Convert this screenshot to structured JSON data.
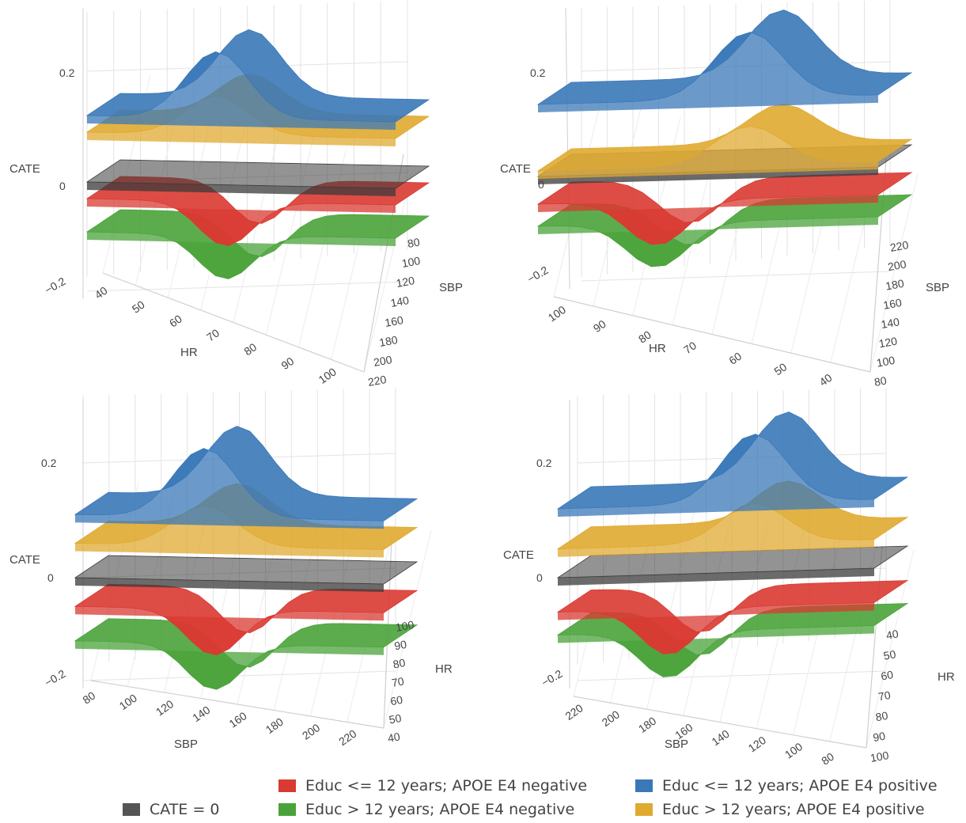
{
  "colors": {
    "zero": "#3a3a3a",
    "educLowNeg": "#d93a32",
    "educHighNeg": "#4aa33a",
    "educLowPos": "#3a78b8",
    "educHighPos": "#e0aa30"
  },
  "chart_data": [
    {
      "type": "surface3d",
      "zlabel": "CATE",
      "xlabel": "HR",
      "ylabel": "SBP",
      "z_ticks": [
        "0.2",
        "0",
        "−0.2"
      ],
      "x_ticks": [
        "40",
        "50",
        "60",
        "70",
        "80",
        "90",
        "100"
      ],
      "y_ticks": [
        "80",
        "100",
        "120",
        "140",
        "160",
        "180",
        "200",
        "220"
      ],
      "series_levels": {
        "zero": 0,
        "educLowNeg": -0.03,
        "educHighNeg": -0.09,
        "educLowPos": 0.12,
        "educHighPos": 0.09
      }
    },
    {
      "type": "surface3d",
      "zlabel": "CATE",
      "xlabel": "HR",
      "ylabel": "SBP",
      "z_ticks": [
        "0.2",
        "0",
        "−0.2"
      ],
      "x_ticks": [
        "100",
        "90",
        "80",
        "70",
        "60",
        "50",
        "40"
      ],
      "y_ticks": [
        "220",
        "200",
        "180",
        "160",
        "140",
        "120",
        "100",
        "80"
      ],
      "series_levels": {
        "zero": 0.01,
        "educLowNeg": -0.04,
        "educHighNeg": -0.08,
        "educLowPos": 0.14,
        "educHighPos": 0.02
      }
    },
    {
      "type": "surface3d",
      "zlabel": "CATE",
      "xlabel": "SBP",
      "ylabel": "HR",
      "z_ticks": [
        "0.2",
        "0",
        "−0.2"
      ],
      "x_ticks": [
        "80",
        "100",
        "120",
        "140",
        "160",
        "180",
        "200",
        "220"
      ],
      "y_ticks": [
        "100",
        "90",
        "80",
        "70",
        "60",
        "50",
        "40"
      ],
      "series_levels": {
        "zero": 0,
        "educLowNeg": -0.05,
        "educHighNeg": -0.11,
        "educLowPos": 0.11,
        "educHighPos": 0.06
      }
    },
    {
      "type": "surface3d",
      "zlabel": "CATE",
      "xlabel": "SBP",
      "ylabel": "HR",
      "z_ticks": [
        "0.2",
        "0",
        "−0.2"
      ],
      "x_ticks": [
        "220",
        "200",
        "180",
        "160",
        "140",
        "120",
        "100",
        "80"
      ],
      "y_ticks": [
        "40",
        "50",
        "60",
        "70",
        "80",
        "90",
        "100"
      ],
      "series_levels": {
        "zero": 0,
        "educLowNeg": -0.06,
        "educHighNeg": -0.1,
        "educLowPos": 0.12,
        "educHighPos": 0.05
      }
    }
  ],
  "legend": {
    "zero": "CATE = 0",
    "educLowNeg": "Educ <= 12 years; APOE E4 negative",
    "educHighNeg": "Educ > 12 years; APOE E4 negative",
    "educLowPos": "Educ <= 12 years; APOE E4 positive",
    "educHighPos": "Educ > 12 years; APOE E4 positive"
  }
}
